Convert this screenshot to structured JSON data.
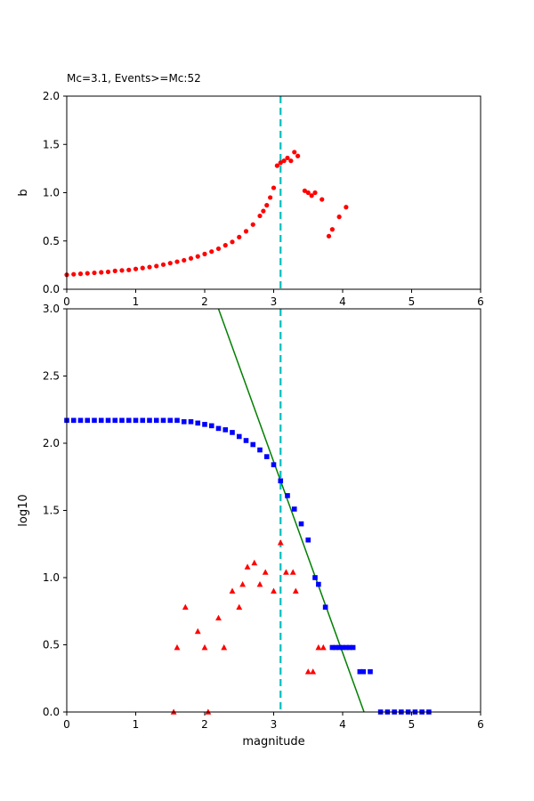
{
  "figure": {
    "title": "Mc=3.1, Events>=Mc:52",
    "background": "#ffffff",
    "mc": 3.1,
    "events_ge_mc": 52
  },
  "chart_data": [
    {
      "type": "scatter",
      "name": "b-value-vs-magnitude",
      "title": "Mc=3.1, Events>=Mc:52",
      "xlabel": "",
      "ylabel": "b",
      "xlim": [
        0,
        6
      ],
      "ylim": [
        0.0,
        2.0
      ],
      "grid": false,
      "legend": null,
      "xticks": [
        0,
        1,
        2,
        3,
        4,
        5,
        6
      ],
      "xtick_labels": [
        "0",
        "1",
        "2",
        "3",
        "4",
        "5",
        "6"
      ],
      "yticks": [
        0.0,
        0.5,
        1.0,
        1.5,
        2.0
      ],
      "ytick_labels": [
        "0.0",
        "0.5",
        "1.0",
        "1.5",
        "2.0"
      ],
      "vline": {
        "x": 3.1,
        "color": "#00bfbf",
        "style": "dashed",
        "width": 2.2
      },
      "series": [
        {
          "name": "b-values",
          "marker": "circle",
          "color": "#ff0000",
          "x": [
            0.0,
            0.1,
            0.2,
            0.3,
            0.4,
            0.5,
            0.6,
            0.7,
            0.8,
            0.9,
            1.0,
            1.1,
            1.2,
            1.3,
            1.4,
            1.5,
            1.6,
            1.7,
            1.8,
            1.9,
            2.0,
            2.1,
            2.2,
            2.3,
            2.4,
            2.5,
            2.6,
            2.7,
            2.8,
            2.85,
            2.9,
            2.95,
            3.0,
            3.05,
            3.1,
            3.15,
            3.2,
            3.25,
            3.3,
            3.35,
            3.45,
            3.5,
            3.55,
            3.6,
            3.7,
            3.8,
            3.85,
            3.95,
            4.05
          ],
          "y": [
            0.15,
            0.155,
            0.16,
            0.165,
            0.17,
            0.175,
            0.18,
            0.19,
            0.195,
            0.2,
            0.21,
            0.22,
            0.23,
            0.24,
            0.255,
            0.27,
            0.285,
            0.3,
            0.32,
            0.34,
            0.365,
            0.39,
            0.42,
            0.455,
            0.49,
            0.54,
            0.6,
            0.67,
            0.76,
            0.81,
            0.87,
            0.95,
            1.05,
            1.28,
            1.31,
            1.33,
            1.36,
            1.33,
            1.42,
            1.38,
            1.02,
            1.0,
            0.97,
            1.0,
            0.93,
            0.55,
            0.62,
            0.75,
            0.85
          ]
        }
      ]
    },
    {
      "type": "scatter",
      "name": "frequency-magnitude-distribution",
      "title": "",
      "xlabel": "magnitude",
      "ylabel": "log10",
      "xlim": [
        0,
        6
      ],
      "ylim": [
        0.0,
        3.0
      ],
      "grid": false,
      "legend": null,
      "xticks": [
        0,
        1,
        2,
        3,
        4,
        5,
        6
      ],
      "xtick_labels": [
        "0",
        "1",
        "2",
        "3",
        "4",
        "5",
        "6"
      ],
      "yticks": [
        0.0,
        0.5,
        1.0,
        1.5,
        2.0,
        2.5,
        3.0
      ],
      "ytick_labels": [
        "0.0",
        "0.5",
        "1.0",
        "1.5",
        "2.0",
        "2.5",
        "3.0"
      ],
      "vline": {
        "x": 3.1,
        "color": "#00bfbf",
        "style": "dashed",
        "width": 2.2
      },
      "fit_line": {
        "name": "gutenberg-richter-fit-line",
        "color": "#008000",
        "width": 1.5,
        "x": [
          2.2,
          4.31
        ],
        "y": [
          3.0,
          0.0
        ]
      },
      "series": [
        {
          "name": "cumulative-event-counts",
          "marker": "square",
          "color": "#0000ff",
          "x": [
            0.0,
            0.1,
            0.2,
            0.3,
            0.4,
            0.5,
            0.6,
            0.7,
            0.8,
            0.9,
            1.0,
            1.1,
            1.2,
            1.3,
            1.4,
            1.5,
            1.6,
            1.7,
            1.8,
            1.9,
            2.0,
            2.1,
            2.2,
            2.3,
            2.4,
            2.5,
            2.6,
            2.7,
            2.8,
            2.9,
            3.0,
            3.1,
            3.2,
            3.3,
            3.4,
            3.5,
            3.6,
            3.65,
            3.75,
            3.85,
            3.9,
            3.95,
            4.0,
            4.05,
            4.1,
            4.15,
            4.25,
            4.3,
            4.4,
            4.55,
            4.65,
            4.75,
            4.85,
            4.95,
            5.05,
            5.15,
            5.25
          ],
          "y": [
            2.17,
            2.17,
            2.17,
            2.17,
            2.17,
            2.17,
            2.17,
            2.17,
            2.17,
            2.17,
            2.17,
            2.17,
            2.17,
            2.17,
            2.17,
            2.17,
            2.17,
            2.16,
            2.16,
            2.15,
            2.14,
            2.13,
            2.11,
            2.1,
            2.08,
            2.05,
            2.02,
            1.99,
            1.95,
            1.9,
            1.84,
            1.72,
            1.61,
            1.51,
            1.4,
            1.28,
            1.0,
            0.95,
            0.78,
            0.48,
            0.48,
            0.48,
            0.48,
            0.48,
            0.48,
            0.48,
            0.3,
            0.3,
            0.3,
            0.0,
            0.0,
            0.0,
            0.0,
            0.0,
            0.0,
            0.0,
            0.0
          ]
        },
        {
          "name": "per-bin-event-counts",
          "marker": "triangle",
          "color": "#ff0000",
          "x": [
            1.55,
            1.6,
            1.72,
            1.9,
            2.0,
            2.05,
            2.2,
            2.28,
            2.4,
            2.5,
            2.55,
            2.62,
            2.72,
            2.8,
            2.88,
            3.0,
            3.1,
            3.18,
            3.28,
            3.32,
            3.5,
            3.57,
            3.65,
            3.72
          ],
          "y": [
            0.0,
            0.48,
            0.78,
            0.6,
            0.48,
            0.0,
            0.7,
            0.48,
            0.9,
            0.78,
            0.95,
            1.08,
            1.11,
            0.95,
            1.04,
            0.9,
            1.26,
            1.04,
            1.04,
            0.9,
            0.3,
            0.3,
            0.48,
            0.48
          ]
        }
      ]
    }
  ]
}
